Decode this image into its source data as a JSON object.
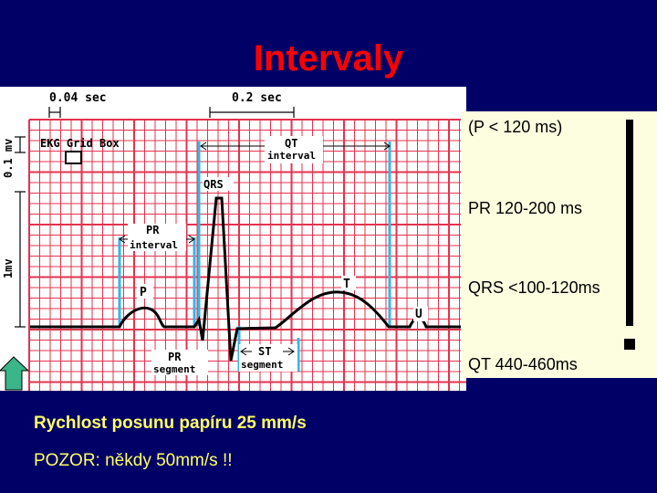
{
  "slide": {
    "title": "Intervaly"
  },
  "ekg": {
    "scale_time_small": "0.04 sec",
    "scale_time_large": "0.2 sec",
    "scale_voltage_small": "0.1 mv",
    "scale_voltage_large": "1mv",
    "grid_box_label": "EKG Grid Box",
    "qt_label": "QT",
    "qt_sub": "interval",
    "qrs_label": "QRS",
    "pr_label": "PR",
    "pr_sub": "interval",
    "p_label": "P",
    "t_label": "T",
    "u_label": "U",
    "pr_segment_label": "PR",
    "pr_segment_sub": "segment",
    "st_segment_label": "ST",
    "st_segment_sub": "segment",
    "colors": {
      "grid": "#e2334f",
      "interval_lines": "#39b4e6",
      "trace": "#000000",
      "arrow": "#3bb58a"
    }
  },
  "info": {
    "p_wave": "(P < 120 ms)",
    "pr": "PR 120-200 ms",
    "qrs": "QRS <100-120ms",
    "qt": "QT 440-460ms"
  },
  "footer": {
    "speed": "Rychlost posunu papíru 25 mm/s",
    "warning": "POZOR: někdy 50mm/s !!"
  },
  "colors": {
    "background": "#000066",
    "title": "#ff0000",
    "footer_text": "#ffff66",
    "info_box": "#fdfde0"
  }
}
